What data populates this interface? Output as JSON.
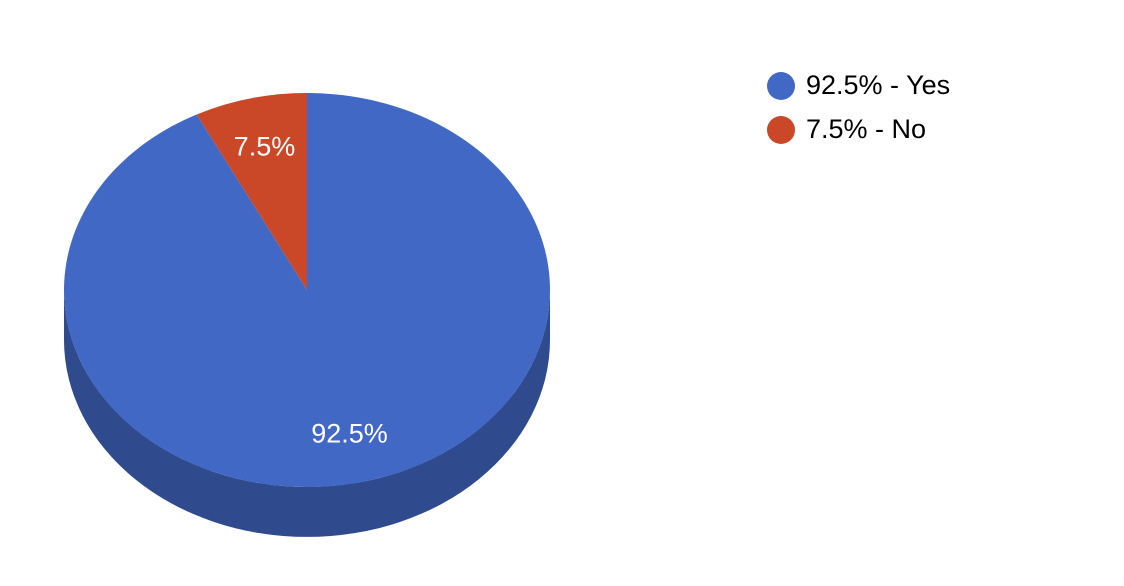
{
  "chart_data": {
    "type": "pie",
    "style_3d": true,
    "background": "#FFFFFF",
    "labels": [
      "Yes",
      "No"
    ],
    "values": [
      92.5,
      7.5
    ],
    "unit": "%",
    "colors": [
      "#4268C6",
      "#CA4727"
    ],
    "side_color": "#2F4A8D",
    "start_angle_deg": 0,
    "direction": "clockwise",
    "slice_labels": [
      "92.5%",
      "7.5%"
    ],
    "slice_label_color": "#FFFFFF",
    "legend": {
      "position": "right",
      "entries": [
        {
          "label": "92.5% - Yes",
          "color": "#4268C6"
        },
        {
          "label": "7.5% - No",
          "color": "#CA4727"
        }
      ]
    }
  }
}
